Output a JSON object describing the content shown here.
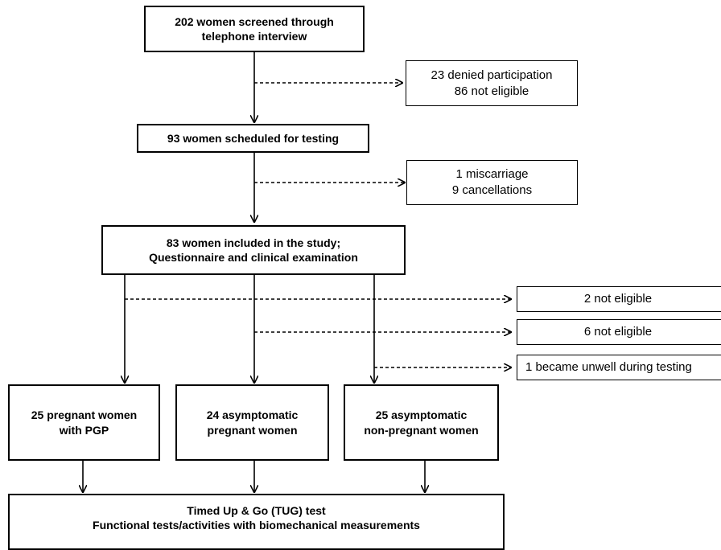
{
  "boxes": {
    "screened": [
      "202 women screened through",
      "telephone interview"
    ],
    "excluded_1": [
      "23 denied participation",
      "86 not eligible"
    ],
    "scheduled": [
      "93 women scheduled for testing"
    ],
    "excluded_2": [
      "1 miscarriage",
      "9 cancellations"
    ],
    "included": [
      "83 women included in the study;",
      "Questionnaire and clinical examination"
    ],
    "excl_pgp": [
      "2 not eligible"
    ],
    "excl_asym_preg": [
      "6 not eligible"
    ],
    "excl_nonpreg": [
      "1 became unwell during testing"
    ],
    "group_pgp": [
      "25 pregnant women",
      "with PGP"
    ],
    "group_asym_preg": [
      "24 asymptomatic",
      "pregnant women"
    ],
    "group_nonpreg": [
      "25 asymptomatic",
      "non-pregnant women"
    ],
    "tests": [
      "Timed Up & Go (TUG) test",
      "Functional tests/activities with biomechanical measurements"
    ]
  },
  "colors": {
    "line": "#000000",
    "background": "#ffffff"
  }
}
